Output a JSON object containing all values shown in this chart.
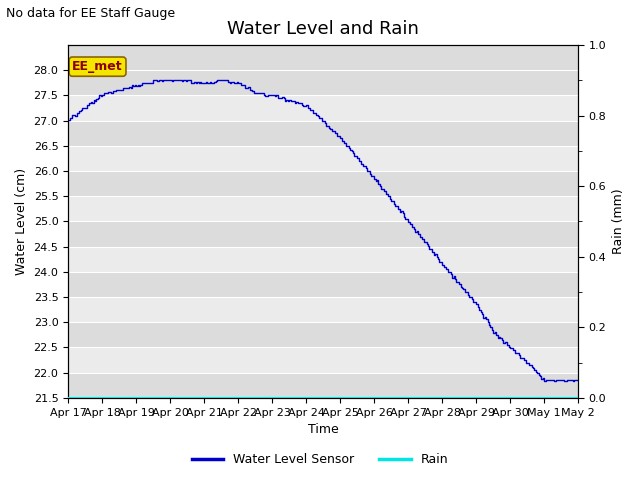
{
  "title": "Water Level and Rain",
  "subtitle": "No data for EE Staff Gauge",
  "xlabel": "Time",
  "ylabel_left": "Water Level (cm)",
  "ylabel_right": "Rain (mm)",
  "annotation_text": "EE_met",
  "annotation_box_facecolor": "#f5e600",
  "annotation_box_edgecolor": "#8b6600",
  "annotation_text_color": "#8b0000",
  "line_color_water": "#0000cc",
  "line_color_rain": "#00e5e5",
  "bg_color_dark": "#dcdcdc",
  "bg_color_light": "#ebebeb",
  "ylim_left": [
    21.5,
    28.5
  ],
  "ylim_right": [
    0.0,
    1.0
  ],
  "yticks_left": [
    21.5,
    22.0,
    22.5,
    23.0,
    23.5,
    24.0,
    24.5,
    25.0,
    25.5,
    26.0,
    26.5,
    27.0,
    27.5,
    28.0
  ],
  "yticks_right_labeled": [
    0.0,
    0.2,
    0.4,
    0.6,
    0.8,
    1.0
  ],
  "yticks_right_minor": [
    0.1,
    0.3,
    0.5,
    0.7,
    0.9
  ],
  "xtick_labels": [
    "Apr 17",
    "Apr 18",
    "Apr 19",
    "Apr 20",
    "Apr 21",
    "Apr 22",
    "Apr 23",
    "Apr 24",
    "Apr 25",
    "Apr 26",
    "Apr 27",
    "Apr 28",
    "Apr 29",
    "Apr 30",
    "May 1",
    "May 2"
  ],
  "legend_labels": [
    "Water Level Sensor",
    "Rain"
  ],
  "title_fontsize": 13,
  "subtitle_fontsize": 9,
  "label_fontsize": 9,
  "tick_fontsize": 8,
  "legend_fontsize": 9
}
